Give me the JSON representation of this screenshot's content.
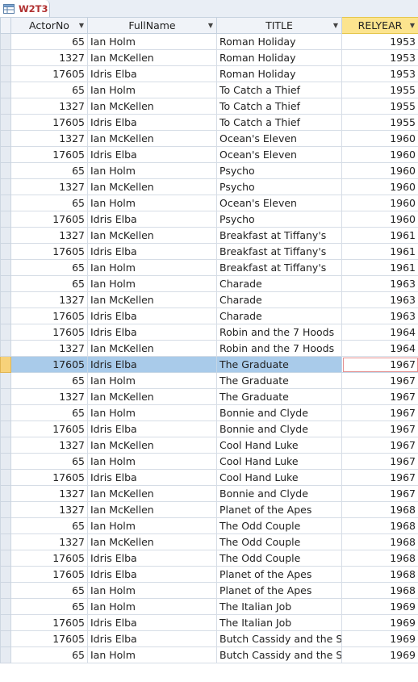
{
  "tab": {
    "label": "W2T3",
    "icon": "table-icon"
  },
  "columns": [
    {
      "key": "actor_no",
      "label": "ActorNo",
      "has_dropdown": true
    },
    {
      "key": "full_name",
      "label": "FullName",
      "has_dropdown": true
    },
    {
      "key": "title",
      "label": "TITLE",
      "has_dropdown": true
    },
    {
      "key": "rel_year",
      "label": "RELYEAR",
      "has_dropdown": true,
      "sorted": true
    }
  ],
  "current_row_index": 20,
  "rows": [
    {
      "actor_no": "65",
      "full_name": "Ian Holm",
      "title": "Roman Holiday",
      "rel_year": "1953"
    },
    {
      "actor_no": "1327",
      "full_name": "Ian McKellen",
      "title": "Roman Holiday",
      "rel_year": "1953"
    },
    {
      "actor_no": "17605",
      "full_name": "Idris Elba",
      "title": "Roman Holiday",
      "rel_year": "1953"
    },
    {
      "actor_no": "65",
      "full_name": "Ian Holm",
      "title": "To Catch a Thief",
      "rel_year": "1955"
    },
    {
      "actor_no": "1327",
      "full_name": "Ian McKellen",
      "title": "To Catch a Thief",
      "rel_year": "1955"
    },
    {
      "actor_no": "17605",
      "full_name": "Idris Elba",
      "title": "To Catch a Thief",
      "rel_year": "1955"
    },
    {
      "actor_no": "1327",
      "full_name": "Ian McKellen",
      "title": "Ocean's Eleven",
      "rel_year": "1960"
    },
    {
      "actor_no": "17605",
      "full_name": "Idris Elba",
      "title": "Ocean's Eleven",
      "rel_year": "1960"
    },
    {
      "actor_no": "65",
      "full_name": "Ian Holm",
      "title": "Psycho",
      "rel_year": "1960"
    },
    {
      "actor_no": "1327",
      "full_name": "Ian McKellen",
      "title": "Psycho",
      "rel_year": "1960"
    },
    {
      "actor_no": "65",
      "full_name": "Ian Holm",
      "title": "Ocean's Eleven",
      "rel_year": "1960"
    },
    {
      "actor_no": "17605",
      "full_name": "Idris Elba",
      "title": "Psycho",
      "rel_year": "1960"
    },
    {
      "actor_no": "1327",
      "full_name": "Ian McKellen",
      "title": "Breakfast at Tiffany's",
      "rel_year": "1961"
    },
    {
      "actor_no": "17605",
      "full_name": "Idris Elba",
      "title": "Breakfast at Tiffany's",
      "rel_year": "1961"
    },
    {
      "actor_no": "65",
      "full_name": "Ian Holm",
      "title": "Breakfast at Tiffany's",
      "rel_year": "1961"
    },
    {
      "actor_no": "65",
      "full_name": "Ian Holm",
      "title": "Charade",
      "rel_year": "1963"
    },
    {
      "actor_no": "1327",
      "full_name": "Ian McKellen",
      "title": "Charade",
      "rel_year": "1963"
    },
    {
      "actor_no": "17605",
      "full_name": "Idris Elba",
      "title": "Charade",
      "rel_year": "1963"
    },
    {
      "actor_no": "17605",
      "full_name": "Idris Elba",
      "title": "Robin and the 7 Hoods",
      "rel_year": "1964"
    },
    {
      "actor_no": "1327",
      "full_name": "Ian McKellen",
      "title": "Robin and the 7 Hoods",
      "rel_year": "1964"
    },
    {
      "actor_no": "17605",
      "full_name": "Idris Elba",
      "title": "The Graduate",
      "rel_year": "1967"
    },
    {
      "actor_no": "65",
      "full_name": "Ian Holm",
      "title": "The Graduate",
      "rel_year": "1967"
    },
    {
      "actor_no": "1327",
      "full_name": "Ian McKellen",
      "title": "The Graduate",
      "rel_year": "1967"
    },
    {
      "actor_no": "65",
      "full_name": "Ian Holm",
      "title": "Bonnie and Clyde",
      "rel_year": "1967"
    },
    {
      "actor_no": "17605",
      "full_name": "Idris Elba",
      "title": "Bonnie and Clyde",
      "rel_year": "1967"
    },
    {
      "actor_no": "1327",
      "full_name": "Ian McKellen",
      "title": "Cool Hand Luke",
      "rel_year": "1967"
    },
    {
      "actor_no": "65",
      "full_name": "Ian Holm",
      "title": "Cool Hand Luke",
      "rel_year": "1967"
    },
    {
      "actor_no": "17605",
      "full_name": "Idris Elba",
      "title": "Cool Hand Luke",
      "rel_year": "1967"
    },
    {
      "actor_no": "1327",
      "full_name": "Ian McKellen",
      "title": "Bonnie and Clyde",
      "rel_year": "1967"
    },
    {
      "actor_no": "1327",
      "full_name": "Ian McKellen",
      "title": "Planet of the Apes",
      "rel_year": "1968"
    },
    {
      "actor_no": "65",
      "full_name": "Ian Holm",
      "title": "The Odd Couple",
      "rel_year": "1968"
    },
    {
      "actor_no": "1327",
      "full_name": "Ian McKellen",
      "title": "The Odd Couple",
      "rel_year": "1968"
    },
    {
      "actor_no": "17605",
      "full_name": "Idris Elba",
      "title": "The Odd Couple",
      "rel_year": "1968"
    },
    {
      "actor_no": "17605",
      "full_name": "Idris Elba",
      "title": "Planet of the Apes",
      "rel_year": "1968"
    },
    {
      "actor_no": "65",
      "full_name": "Ian Holm",
      "title": "Planet of the Apes",
      "rel_year": "1968"
    },
    {
      "actor_no": "65",
      "full_name": "Ian Holm",
      "title": "The Italian Job",
      "rel_year": "1969"
    },
    {
      "actor_no": "17605",
      "full_name": "Idris Elba",
      "title": "The Italian Job",
      "rel_year": "1969"
    },
    {
      "actor_no": "17605",
      "full_name": "Idris Elba",
      "title": "Butch Cassidy and the Su",
      "rel_year": "1969"
    },
    {
      "actor_no": "65",
      "full_name": "Ian Holm",
      "title": "Butch Cassidy and the Su",
      "rel_year": "1969"
    }
  ]
}
